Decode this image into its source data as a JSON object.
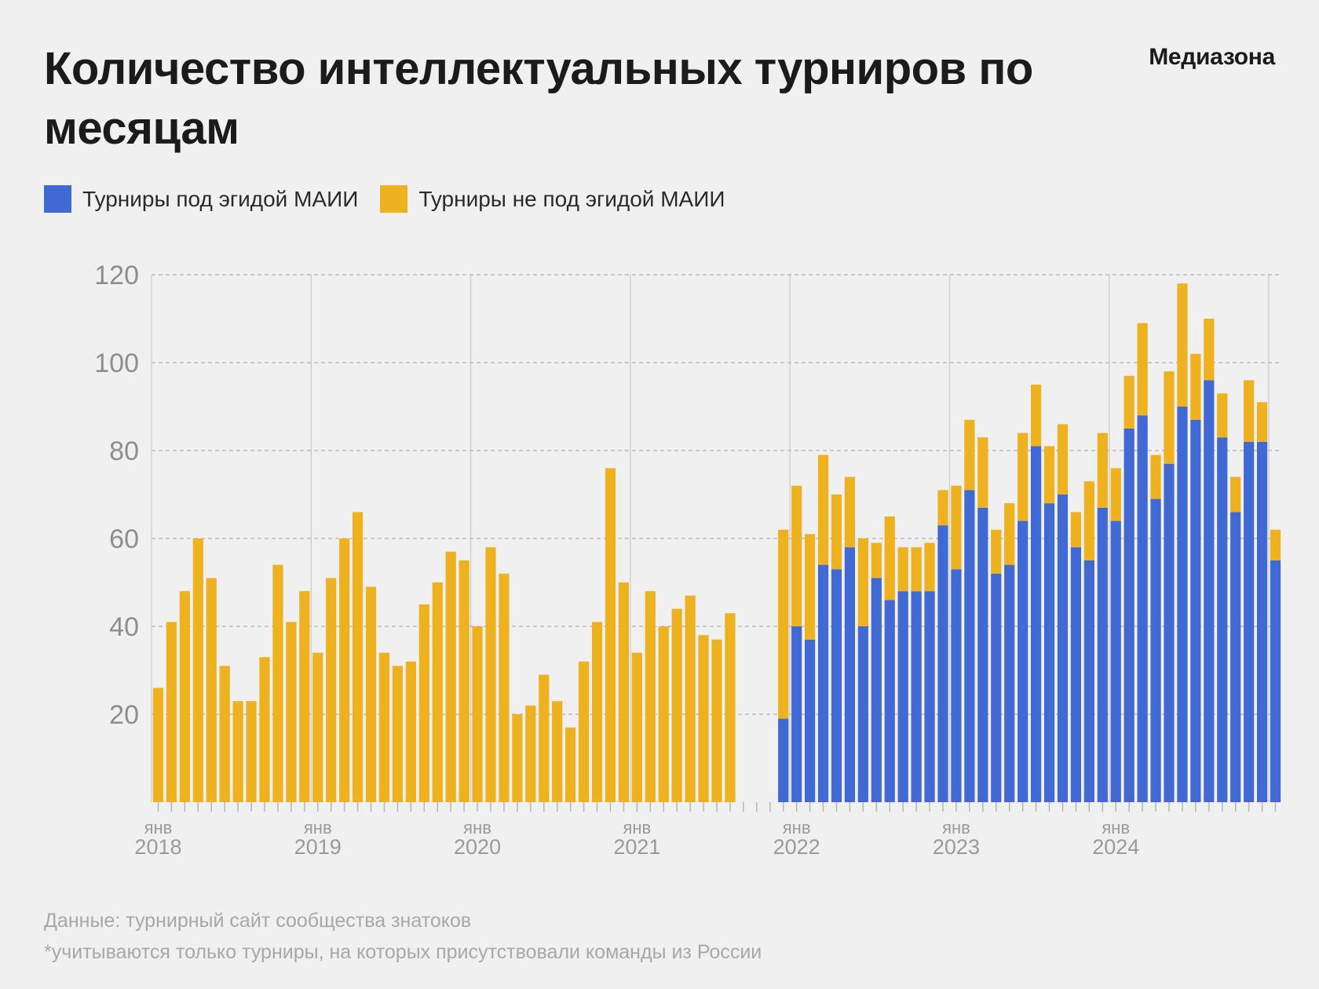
{
  "header": {
    "title": "Количество интеллектуальных турниров по месяцам",
    "brand": "Медиазона"
  },
  "legend": [
    {
      "label": "Турниры под эгидой МАИИ",
      "color": "#4169d4"
    },
    {
      "label": "Турниры не под эгидой МАИИ",
      "color": "#eeb11f"
    }
  ],
  "footer": {
    "source": "Данные: турнирный сайт сообщества знатоков",
    "note": "*учитываются только турниры, на которых присутствовали команды из России"
  },
  "chart_data": {
    "type": "bar",
    "stacked": true,
    "ylim": [
      0,
      120
    ],
    "yticks": [
      20,
      40,
      60,
      80,
      100,
      120
    ],
    "grid": "horizontal dashed, vertical lines at January",
    "x_start": "2018-01",
    "month_label": "янв",
    "year_labels": [
      "2018",
      "2019",
      "2020",
      "2021",
      "2022",
      "2023",
      "2024"
    ],
    "series": [
      {
        "name": "Турниры под эгидой МАИИ",
        "color": "#4169d4",
        "values": [
          0,
          0,
          0,
          0,
          0,
          0,
          0,
          0,
          0,
          0,
          0,
          0,
          0,
          0,
          0,
          0,
          0,
          0,
          0,
          0,
          0,
          0,
          0,
          0,
          0,
          0,
          0,
          0,
          0,
          0,
          0,
          0,
          0,
          0,
          0,
          0,
          0,
          0,
          0,
          0,
          0,
          0,
          0,
          0,
          0,
          0,
          0,
          19,
          40,
          37,
          54,
          53,
          58,
          40,
          51,
          46,
          48,
          48,
          48,
          63,
          53,
          71,
          67,
          52,
          54,
          64,
          81,
          68,
          70,
          58,
          55,
          67,
          64,
          85,
          88,
          69,
          77,
          90,
          87,
          96,
          83,
          66,
          82,
          82,
          55
        ]
      },
      {
        "name": "Турниры не под эгидой МАИИ",
        "color": "#eeb11f",
        "values": [
          26,
          41,
          48,
          60,
          51,
          31,
          23,
          23,
          33,
          54,
          41,
          48,
          34,
          51,
          60,
          66,
          49,
          34,
          31,
          32,
          45,
          50,
          57,
          55,
          40,
          58,
          52,
          20,
          22,
          29,
          23,
          17,
          32,
          41,
          76,
          50,
          34,
          48,
          40,
          44,
          47,
          38,
          37,
          43,
          0,
          0,
          0,
          43,
          32,
          24,
          25,
          17,
          16,
          20,
          8,
          19,
          10,
          10,
          11,
          8,
          19,
          16,
          16,
          10,
          14,
          20,
          14,
          13,
          16,
          8,
          18,
          17,
          12,
          12,
          21,
          10,
          21,
          28,
          15,
          14,
          10,
          8,
          14,
          9,
          7
        ]
      }
    ]
  }
}
